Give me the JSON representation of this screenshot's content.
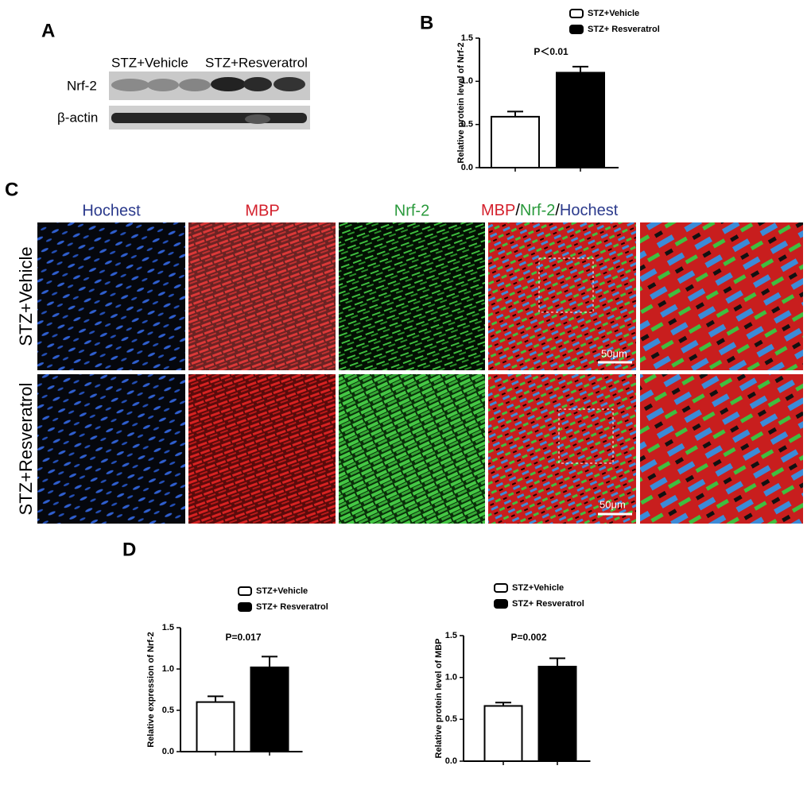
{
  "panel_labels": [
    "A",
    "B",
    "C",
    "D"
  ],
  "blot": {
    "groups": [
      "STZ+Vehicle",
      "STZ+Resveratrol"
    ],
    "rows": [
      "Nrf-2",
      "β-actin"
    ]
  },
  "panel_c": {
    "columns": [
      "Hochest",
      "MBP",
      "Nrf-2"
    ],
    "merge": [
      "MBP",
      "/",
      "Nrf-2",
      "/",
      "Hochest"
    ],
    "rows": [
      "STZ+Vehicle",
      "STZ+Resveratrol"
    ],
    "scale_bars": [
      "50μm",
      "50μm"
    ]
  },
  "chart_data": [
    {
      "type": "bar",
      "ylabel": "Relative protein level of Nrf-2",
      "annotation": "P＜0.01",
      "ylim": [
        0,
        1.5
      ],
      "yticks": [
        {
          "value": 0,
          "label": "0.0"
        },
        0.5,
        {
          "value": 1,
          "label": "1.0"
        },
        1.5
      ],
      "series": [
        {
          "name": "STZ+Vehicle",
          "color": "#ffffff",
          "values": [
            0.59
          ],
          "errors": [
            0.06
          ]
        },
        {
          "name": "STZ+ Resveratrol",
          "color": "#000000",
          "values": [
            1.1
          ],
          "errors": [
            0.07
          ]
        }
      ]
    },
    {
      "type": "bar",
      "ylabel": "Relative expression of Nrf-2",
      "annotation": "P=0.017",
      "ylim": [
        0,
        1.5
      ],
      "yticks": [
        {
          "value": 0,
          "label": "0.0"
        },
        0.5,
        {
          "value": 1,
          "label": "1.0"
        },
        1.5
      ],
      "series": [
        {
          "name": "STZ+Vehicle",
          "color": "#ffffff",
          "values": [
            0.6
          ],
          "errors": [
            0.07
          ]
        },
        {
          "name": "STZ+ Resveratrol",
          "color": "#000000",
          "values": [
            1.02
          ],
          "errors": [
            0.13
          ]
        }
      ]
    },
    {
      "type": "bar",
      "ylabel": "Relative protein level of MBP",
      "annotation": "P=0.002",
      "ylim": [
        0,
        1.5
      ],
      "yticks": [
        {
          "value": 0,
          "label": "0.0"
        },
        0.5,
        {
          "value": 1,
          "label": "1.0"
        },
        1.5
      ],
      "series": [
        {
          "name": "STZ+Vehicle",
          "color": "#ffffff",
          "values": [
            0.66
          ],
          "errors": [
            0.04
          ]
        },
        {
          "name": "STZ+ Resveratrol",
          "color": "#000000",
          "values": [
            1.13
          ],
          "errors": [
            0.1
          ]
        }
      ]
    }
  ]
}
